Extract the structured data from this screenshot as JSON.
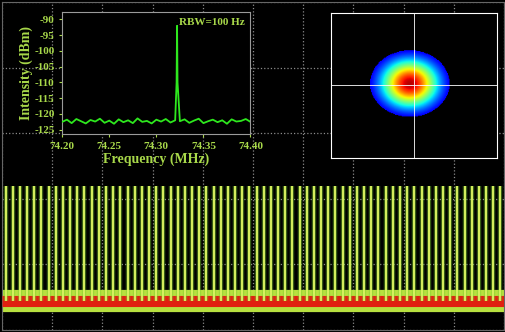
{
  "chart_data": [
    {
      "type": "stem",
      "x": [
        0.5,
        1.5,
        2.5,
        3.5,
        4.5,
        5.5,
        6.5,
        7.5,
        8.5,
        9.5,
        10.5,
        11.5,
        12.5,
        13.5,
        14.5,
        15.5,
        16.5,
        17.5,
        18.5,
        19.5,
        20.5,
        21.5,
        22.5,
        23.5,
        24.5,
        25.5,
        26.5,
        27.5,
        28.5,
        29.5,
        30.5,
        31.5,
        32.5,
        33.5,
        34.5,
        35.5,
        36.5,
        37.5,
        38.5,
        39.5,
        40.5,
        41.5,
        42.5,
        43.5,
        44.5,
        45.5,
        46.5,
        47.5,
        48.5,
        49.5,
        50.5,
        51.5,
        52.5,
        53.5,
        54.5,
        55.5,
        56.5,
        57.5,
        58.5,
        59.5,
        60.5,
        61.5,
        62.5,
        63.5,
        64.5,
        65.5,
        66.5,
        67.5,
        68.5,
        69.5
      ],
      "values": [
        1.0,
        1.0,
        1.0,
        1.0,
        1.0,
        1.0,
        1.0,
        1.0,
        1.0,
        1.0,
        1.0,
        1.0,
        1.0,
        1.0,
        1.0,
        1.0,
        1.0,
        1.0,
        1.0,
        1.0,
        1.0,
        1.0,
        1.0,
        1.0,
        1.0,
        1.0,
        1.0,
        1.0,
        1.0,
        1.0,
        1.0,
        1.0,
        1.0,
        1.0,
        1.0,
        1.0,
        1.0,
        1.0,
        1.0,
        1.0,
        1.0,
        1.0,
        1.0,
        1.0,
        1.0,
        1.0,
        1.0,
        1.0,
        1.0,
        1.0,
        1.0,
        1.0,
        1.0,
        1.0,
        1.0,
        1.0,
        1.0,
        1.0,
        1.0,
        1.0,
        1.0,
        1.0,
        1.0,
        1.0,
        1.0,
        1.0,
        1.0,
        1.0,
        1.0,
        1.0
      ],
      "color": "#d8f060",
      "xlim": [
        0,
        70
      ],
      "ylim": [
        -0.25,
        2.6
      ],
      "xticks": [
        0,
        7,
        14,
        21,
        28,
        35,
        42,
        49,
        56,
        63,
        70
      ],
      "yticks": [
        -0.25,
        0.32,
        0.89,
        1.46,
        2.03,
        2.6
      ],
      "grid": true,
      "tick_labels": false
    },
    {
      "type": "line",
      "x": [
        74.2,
        74.205,
        74.21,
        74.215,
        74.22,
        74.225,
        74.23,
        74.235,
        74.24,
        74.245,
        74.25,
        74.255,
        74.26,
        74.265,
        74.27,
        74.275,
        74.28,
        74.285,
        74.29,
        74.295,
        74.3,
        74.305,
        74.31,
        74.315,
        74.32,
        74.3215,
        74.322,
        74.3225,
        74.325,
        74.33,
        74.335,
        74.34,
        74.345,
        74.35,
        74.355,
        74.36,
        74.365,
        74.37,
        74.375,
        74.38,
        74.385,
        74.39,
        74.395,
        74.4
      ],
      "values": [
        -122.5,
        -121.8,
        -122.9,
        -121.6,
        -122.3,
        -123.0,
        -121.9,
        -122.4,
        -121.5,
        -122.8,
        -122.1,
        -123.1,
        -121.7,
        -122.6,
        -122.0,
        -122.9,
        -121.4,
        -122.5,
        -122.2,
        -123.0,
        -121.8,
        -122.4,
        -121.6,
        -122.7,
        -122.0,
        -110.0,
        -92.0,
        -110.0,
        -122.3,
        -121.7,
        -122.8,
        -122.1,
        -121.5,
        -122.9,
        -122.3,
        -121.8,
        -122.6,
        -122.0,
        -123.1,
        -121.7,
        -122.4,
        -122.2,
        -121.6,
        -122.5
      ],
      "color": "#2ee81e",
      "xlabel": "Frequency (MHz)",
      "ylabel": "Intensity (dBm)",
      "annotation": "RBW=100 Hz",
      "xlim": [
        74.2,
        74.4
      ],
      "ylim": [
        -126.5,
        -87.5
      ],
      "xticks": [
        {
          "value": 74.2,
          "label": "74.20"
        },
        {
          "value": 74.25,
          "label": "74.25"
        },
        {
          "value": 74.3,
          "label": "74.30"
        },
        {
          "value": 74.35,
          "label": "74.35"
        },
        {
          "value": 74.4,
          "label": "74.40"
        }
      ],
      "yticks": [
        -125,
        -120,
        -115,
        -110,
        -105,
        -100,
        -95,
        -90
      ],
      "grid": false
    }
  ]
}
